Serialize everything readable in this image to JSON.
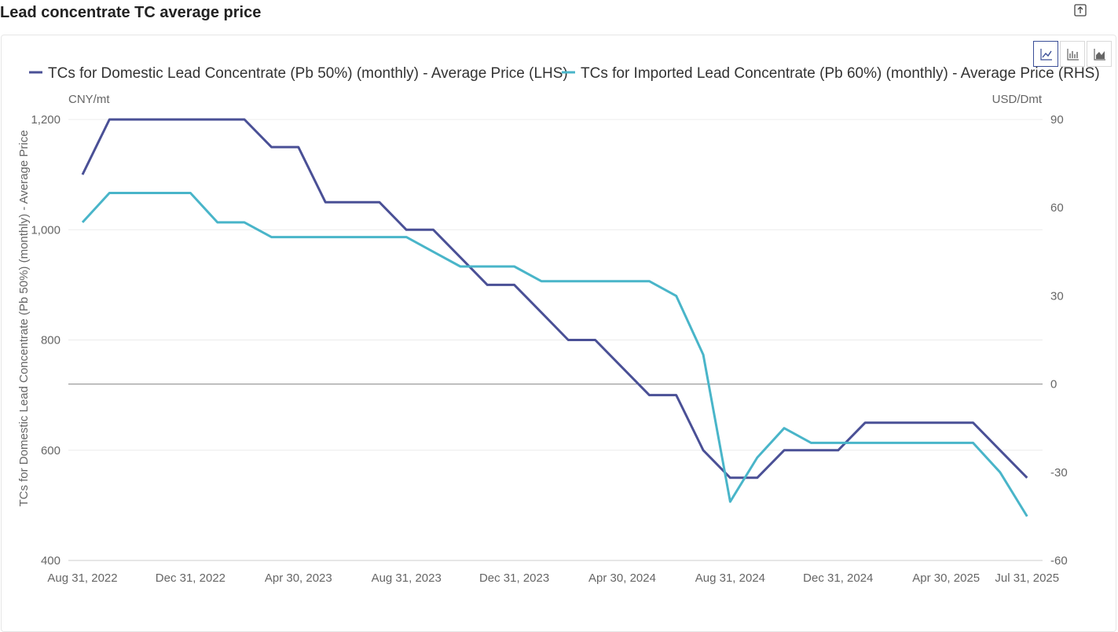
{
  "header": {
    "title": "Lead concentrate TC average price"
  },
  "toolbar": {
    "chart_types": [
      "line",
      "bar",
      "area"
    ],
    "active": "line"
  },
  "colors": {
    "domestic": "#4a5096",
    "imported": "#49b5c9",
    "grid": "#ececec",
    "zero_line": "#888888",
    "axis_text": "#666666"
  },
  "chart_data": {
    "type": "line",
    "x_labels": [
      "Aug 31, 2022",
      "Dec 31, 2022",
      "Apr 30, 2023",
      "Aug 31, 2023",
      "Dec 31, 2023",
      "Apr 30, 2024",
      "Aug 31, 2024",
      "Dec 31, 2024",
      "Apr 30, 2025",
      "Jul 31, 2025"
    ],
    "x": [
      "2022-08",
      "2022-09",
      "2022-10",
      "2022-11",
      "2022-12",
      "2023-01",
      "2023-02",
      "2023-03",
      "2023-04",
      "2023-05",
      "2023-06",
      "2023-07",
      "2023-08",
      "2023-09",
      "2023-10",
      "2023-11",
      "2023-12",
      "2024-01",
      "2024-02",
      "2024-03",
      "2024-04",
      "2024-05",
      "2024-06",
      "2024-07",
      "2024-08",
      "2024-09",
      "2024-10",
      "2024-11",
      "2024-12",
      "2025-01",
      "2025-02",
      "2025-03",
      "2025-04",
      "2025-05",
      "2025-06",
      "2025-07"
    ],
    "left_axis": {
      "unit": "CNY/mt",
      "label": "TCs for Domestic Lead Concentrate (Pb 50%) (monthly) - Average Price",
      "ticks": [
        "1,200",
        "1,000",
        "800",
        "600",
        "400"
      ],
      "range": [
        400,
        1200
      ]
    },
    "right_axis": {
      "unit": "USD/Dmt",
      "ticks": [
        "90",
        "60",
        "30",
        "0",
        "-30",
        "-60"
      ],
      "range": [
        -60,
        90
      ]
    },
    "legend_position": "top",
    "series": [
      {
        "name": "TCs for Domestic Lead Concentrate (Pb 50%) (monthly) - Average Price (LHS)",
        "axis": "left",
        "values": [
          1100,
          1200,
          1200,
          1200,
          1200,
          1200,
          1200,
          1150,
          1150,
          1050,
          1050,
          1050,
          1000,
          1000,
          950,
          900,
          900,
          850,
          800,
          800,
          750,
          700,
          700,
          600,
          550,
          550,
          600,
          600,
          600,
          650,
          650,
          650,
          650,
          650,
          600,
          550
        ]
      },
      {
        "name": "TCs for Imported Lead Concentrate (Pb 60%) (monthly) - Average Price (RHS)",
        "axis": "right",
        "values": [
          55,
          65,
          65,
          65,
          65,
          55,
          55,
          50,
          50,
          50,
          50,
          50,
          50,
          45,
          40,
          40,
          40,
          35,
          35,
          35,
          35,
          35,
          30,
          10,
          -40,
          -25,
          -15,
          -20,
          -20,
          -20,
          -20,
          -20,
          -20,
          -20,
          -30,
          -45
        ]
      }
    ]
  }
}
